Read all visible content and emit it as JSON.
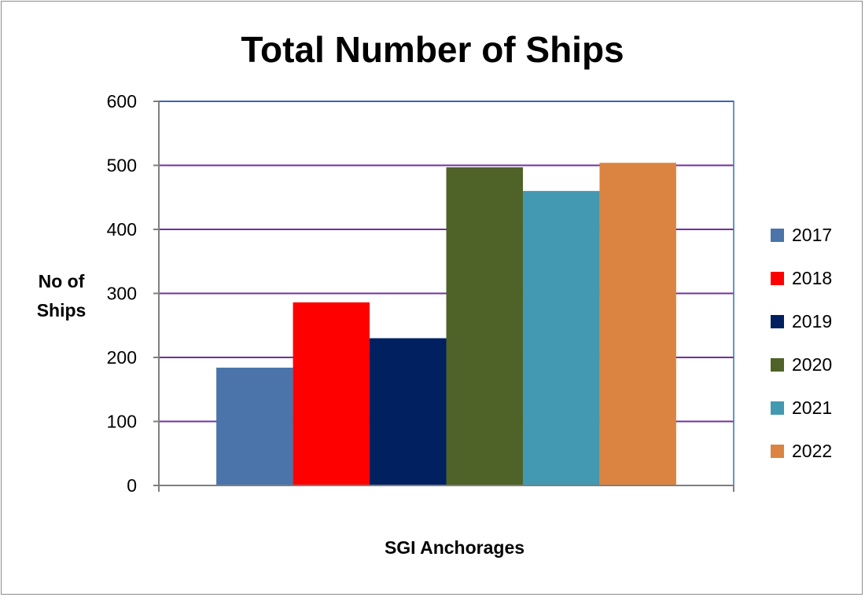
{
  "chart_data": {
    "type": "bar",
    "title": "Total Number of Ships",
    "ylabel_lines": [
      "No of",
      "Ships"
    ],
    "xlabel": "SGI Anchorages",
    "categories": [
      "SGI Anchorages"
    ],
    "ylim": [
      0,
      600
    ],
    "yticks": [
      "0",
      "100",
      "200",
      "300",
      "400",
      "500",
      "600"
    ],
    "grid": true,
    "legend_position": "right",
    "series": [
      {
        "name": "2017",
        "values": [
          184
        ],
        "color": "#4a74aa"
      },
      {
        "name": "2018",
        "values": [
          286
        ],
        "color": "#ff0000"
      },
      {
        "name": "2019",
        "values": [
          230
        ],
        "color": "#002060"
      },
      {
        "name": "2020",
        "values": [
          497
        ],
        "color": "#4f6228"
      },
      {
        "name": "2021",
        "values": [
          460
        ],
        "color": "#4299b1"
      },
      {
        "name": "2022",
        "values": [
          504
        ],
        "color": "#db8441"
      }
    ],
    "colors": {
      "gridline": "#7030a0",
      "plot_border": "#2e75b6",
      "axis": "#7f7f7f"
    }
  }
}
